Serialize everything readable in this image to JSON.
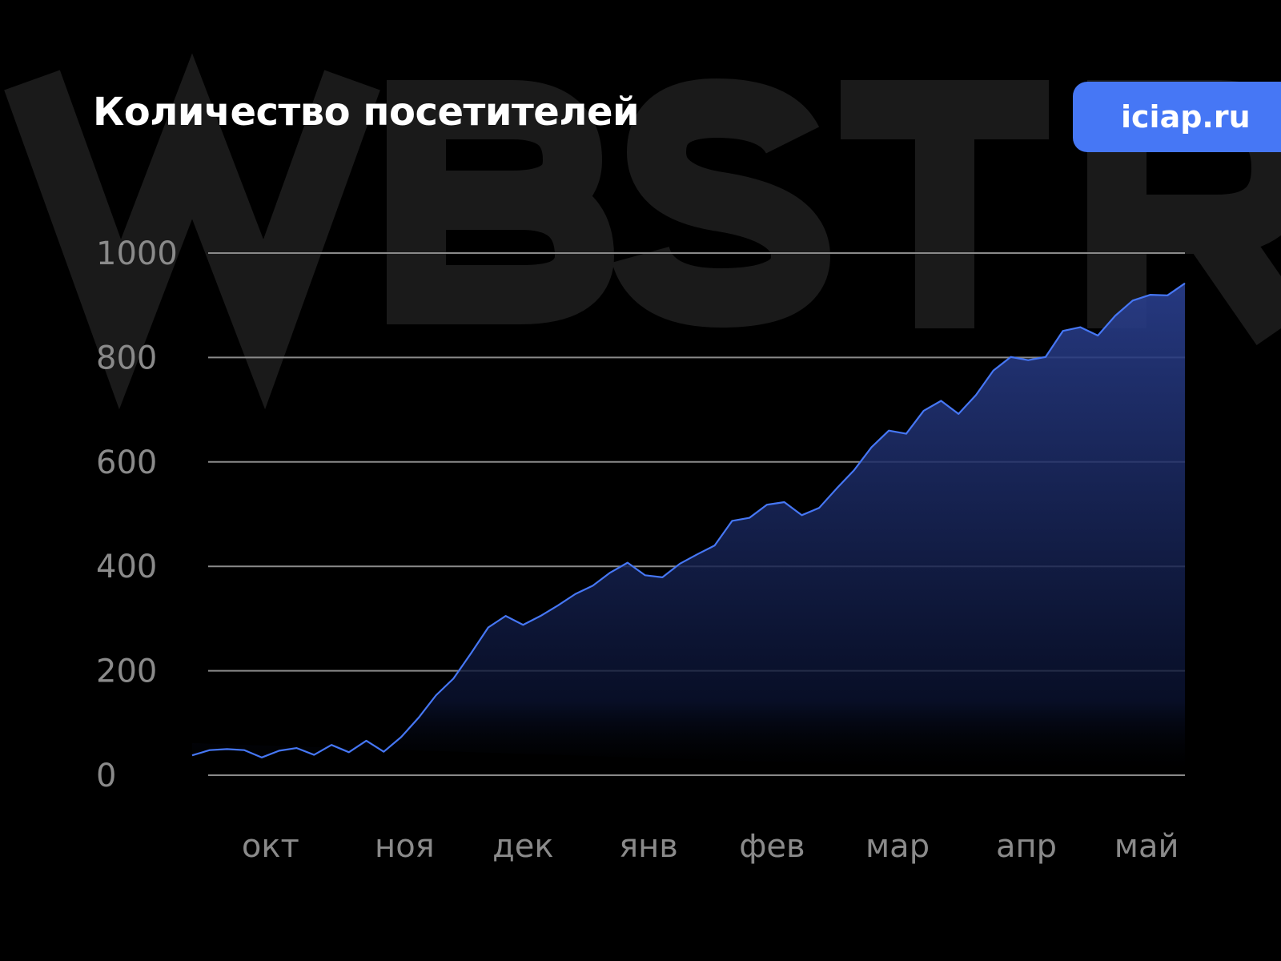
{
  "header": {
    "title": "Количество посетителей",
    "badge": "iciap.ru",
    "watermark": "WBSTR"
  },
  "colors": {
    "line": "#4677f5",
    "badge": "#4677f5",
    "grid": "#8a8a8a",
    "background": "#000000",
    "watermark": "#1a1a1a"
  },
  "chart_data": {
    "type": "area",
    "title": "Количество посетителей",
    "xlabel": "",
    "ylabel": "",
    "ylim": [
      0,
      1000
    ],
    "yticks": [
      0,
      200,
      400,
      600,
      800,
      1000
    ],
    "grid": true,
    "month_labels": [
      {
        "label": "окт",
        "index": 4.5
      },
      {
        "label": "ноя",
        "index": 12.2
      },
      {
        "label": "дек",
        "index": 19
      },
      {
        "label": "янв",
        "index": 26.2
      },
      {
        "label": "фев",
        "index": 33.3
      },
      {
        "label": "мар",
        "index": 40.5
      },
      {
        "label": "апр",
        "index": 47.9
      },
      {
        "label": "май",
        "index": 54.8
      }
    ],
    "values": [
      38,
      48,
      50,
      48,
      34,
      47,
      52,
      39,
      58,
      44,
      66,
      45,
      73,
      110,
      153,
      185,
      233,
      283,
      305,
      288,
      305,
      325,
      347,
      363,
      388,
      407,
      383,
      379,
      405,
      423,
      440,
      487,
      493,
      518,
      523,
      498,
      512,
      549,
      584,
      628,
      660,
      654,
      698,
      717,
      692,
      728,
      775,
      801,
      795,
      801,
      851,
      858,
      842,
      880,
      909,
      920,
      919,
      942
    ]
  }
}
